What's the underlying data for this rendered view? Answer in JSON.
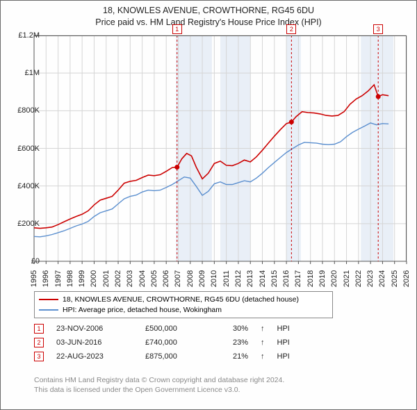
{
  "title_line1": "18, KNOWLES AVENUE, CROWTHORNE, RG45 6DU",
  "title_line2": "Price paid vs. HM Land Registry's House Price Index (HPI)",
  "chart": {
    "type": "line",
    "background_color": "#ffffff",
    "grid_color": "#d5d5d5",
    "axis_color": "#555555",
    "shaded_bands_color": "#e9eff7",
    "xlim": [
      1995,
      2026
    ],
    "ylim": [
      0,
      1200000
    ],
    "y_ticks": [
      {
        "v": 0,
        "label": "£0"
      },
      {
        "v": 200000,
        "label": "£200K"
      },
      {
        "v": 400000,
        "label": "£400K"
      },
      {
        "v": 600000,
        "label": "£600K"
      },
      {
        "v": 800000,
        "label": "£800K"
      },
      {
        "v": 1000000,
        "label": "£1M"
      },
      {
        "v": 1200000,
        "label": "£1.2M"
      }
    ],
    "x_ticks": [
      1995,
      1996,
      1997,
      1998,
      1999,
      2000,
      2001,
      2002,
      2003,
      2004,
      2005,
      2006,
      2007,
      2008,
      2009,
      2010,
      2011,
      2012,
      2013,
      2014,
      2015,
      2016,
      2017,
      2018,
      2019,
      2020,
      2021,
      2022,
      2023,
      2024,
      2025,
      2026
    ],
    "shaded_bands": [
      {
        "from": 2006.8,
        "to": 2009.8
      },
      {
        "from": 2010.5,
        "to": 2013.0
      },
      {
        "from": 2016.0,
        "to": 2017.2
      },
      {
        "from": 2022.2,
        "to": 2024.9
      }
    ],
    "series": [
      {
        "name": "property",
        "color": "#cc0000",
        "line_width": 1.6,
        "data": [
          [
            1995.0,
            178000
          ],
          [
            1995.5,
            175000
          ],
          [
            1996.0,
            178000
          ],
          [
            1996.5,
            182000
          ],
          [
            1997.0,
            195000
          ],
          [
            1997.5,
            210000
          ],
          [
            1998.0,
            225000
          ],
          [
            1998.5,
            238000
          ],
          [
            1999.0,
            250000
          ],
          [
            1999.5,
            268000
          ],
          [
            2000.0,
            300000
          ],
          [
            2000.5,
            325000
          ],
          [
            2001.0,
            335000
          ],
          [
            2001.5,
            345000
          ],
          [
            2002.0,
            378000
          ],
          [
            2002.5,
            415000
          ],
          [
            2003.0,
            425000
          ],
          [
            2003.5,
            430000
          ],
          [
            2004.0,
            445000
          ],
          [
            2004.5,
            458000
          ],
          [
            2005.0,
            455000
          ],
          [
            2005.5,
            460000
          ],
          [
            2006.0,
            478000
          ],
          [
            2006.5,
            498000
          ],
          [
            2006.9,
            500000
          ],
          [
            2007.3,
            545000
          ],
          [
            2007.7,
            573000
          ],
          [
            2008.1,
            560000
          ],
          [
            2008.5,
            500000
          ],
          [
            2009.0,
            438000
          ],
          [
            2009.5,
            468000
          ],
          [
            2010.0,
            520000
          ],
          [
            2010.5,
            532000
          ],
          [
            2011.0,
            510000
          ],
          [
            2011.5,
            508000
          ],
          [
            2012.0,
            520000
          ],
          [
            2012.5,
            538000
          ],
          [
            2013.0,
            528000
          ],
          [
            2013.5,
            555000
          ],
          [
            2014.0,
            590000
          ],
          [
            2014.5,
            628000
          ],
          [
            2015.0,
            665000
          ],
          [
            2015.5,
            700000
          ],
          [
            2016.0,
            732000
          ],
          [
            2016.42,
            740000
          ],
          [
            2016.8,
            768000
          ],
          [
            2017.3,
            795000
          ],
          [
            2017.8,
            790000
          ],
          [
            2018.3,
            788000
          ],
          [
            2018.8,
            783000
          ],
          [
            2019.3,
            775000
          ],
          [
            2019.8,
            772000
          ],
          [
            2020.3,
            775000
          ],
          [
            2020.8,
            795000
          ],
          [
            2021.3,
            835000
          ],
          [
            2021.8,
            862000
          ],
          [
            2022.3,
            880000
          ],
          [
            2022.8,
            905000
          ],
          [
            2023.3,
            938000
          ],
          [
            2023.64,
            875000
          ],
          [
            2024.0,
            885000
          ],
          [
            2024.5,
            880000
          ]
        ]
      },
      {
        "name": "hpi",
        "color": "#5b8fcf",
        "line_width": 1.4,
        "data": [
          [
            1995.0,
            132000
          ],
          [
            1995.5,
            130000
          ],
          [
            1996.0,
            135000
          ],
          [
            1996.5,
            142000
          ],
          [
            1997.0,
            152000
          ],
          [
            1997.5,
            162000
          ],
          [
            1998.0,
            175000
          ],
          [
            1998.5,
            188000
          ],
          [
            1999.0,
            198000
          ],
          [
            1999.5,
            212000
          ],
          [
            2000.0,
            238000
          ],
          [
            2000.5,
            258000
          ],
          [
            2001.0,
            268000
          ],
          [
            2001.5,
            278000
          ],
          [
            2002.0,
            305000
          ],
          [
            2002.5,
            332000
          ],
          [
            2003.0,
            345000
          ],
          [
            2003.5,
            352000
          ],
          [
            2004.0,
            368000
          ],
          [
            2004.5,
            378000
          ],
          [
            2005.0,
            375000
          ],
          [
            2005.5,
            378000
          ],
          [
            2006.0,
            392000
          ],
          [
            2006.5,
            408000
          ],
          [
            2007.0,
            428000
          ],
          [
            2007.5,
            448000
          ],
          [
            2008.0,
            442000
          ],
          [
            2008.5,
            398000
          ],
          [
            2009.0,
            350000
          ],
          [
            2009.5,
            372000
          ],
          [
            2010.0,
            412000
          ],
          [
            2010.5,
            422000
          ],
          [
            2011.0,
            408000
          ],
          [
            2011.5,
            408000
          ],
          [
            2012.0,
            418000
          ],
          [
            2012.5,
            428000
          ],
          [
            2013.0,
            422000
          ],
          [
            2013.5,
            442000
          ],
          [
            2014.0,
            468000
          ],
          [
            2014.5,
            498000
          ],
          [
            2015.0,
            525000
          ],
          [
            2015.5,
            552000
          ],
          [
            2016.0,
            578000
          ],
          [
            2016.5,
            598000
          ],
          [
            2017.0,
            618000
          ],
          [
            2017.5,
            632000
          ],
          [
            2018.0,
            630000
          ],
          [
            2018.5,
            628000
          ],
          [
            2019.0,
            622000
          ],
          [
            2019.5,
            620000
          ],
          [
            2020.0,
            622000
          ],
          [
            2020.5,
            635000
          ],
          [
            2021.0,
            662000
          ],
          [
            2021.5,
            685000
          ],
          [
            2022.0,
            702000
          ],
          [
            2022.5,
            718000
          ],
          [
            2023.0,
            735000
          ],
          [
            2023.5,
            725000
          ],
          [
            2024.0,
            732000
          ],
          [
            2024.5,
            730000
          ]
        ]
      }
    ],
    "sale_markers": [
      {
        "n": "1",
        "year": 2006.9,
        "price": 500000
      },
      {
        "n": "2",
        "year": 2016.42,
        "price": 740000
      },
      {
        "n": "3",
        "year": 2023.64,
        "price": 875000
      }
    ],
    "marker_color": "#cc0000",
    "marker_dash": "3,3"
  },
  "legend": {
    "items": [
      {
        "color": "#cc0000",
        "label": "18, KNOWLES AVENUE, CROWTHORNE, RG45 6DU (detached house)"
      },
      {
        "color": "#5b8fcf",
        "label": "HPI: Average price, detached house, Wokingham"
      }
    ]
  },
  "sales": [
    {
      "n": "1",
      "date": "23-NOV-2006",
      "price": "£500,000",
      "pct": "30%",
      "arrow": "↑",
      "suffix": "HPI"
    },
    {
      "n": "2",
      "date": "03-JUN-2016",
      "price": "£740,000",
      "pct": "23%",
      "arrow": "↑",
      "suffix": "HPI"
    },
    {
      "n": "3",
      "date": "22-AUG-2023",
      "price": "£875,000",
      "pct": "21%",
      "arrow": "↑",
      "suffix": "HPI"
    }
  ],
  "footer_line1": "Contains HM Land Registry data © Crown copyright and database right 2024.",
  "footer_line2": "This data is licensed under the Open Government Licence v3.0."
}
